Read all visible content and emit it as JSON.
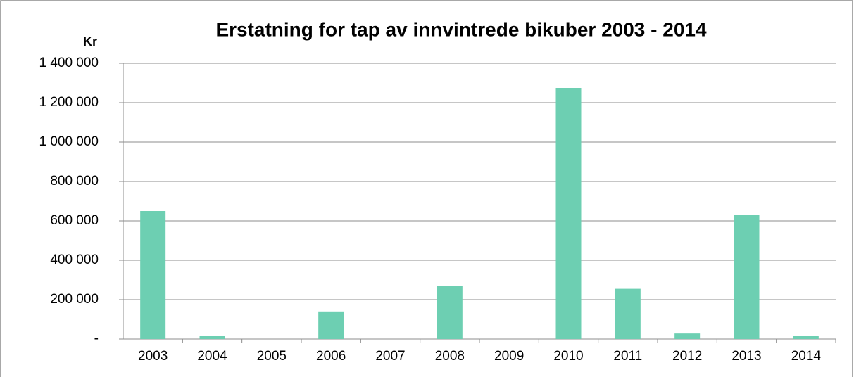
{
  "chart_data": {
    "type": "bar",
    "title": "Erstatning for tap av innvintrede bikuber 2003 - 2014",
    "y_label": "Kr",
    "categories": [
      "2003",
      "2004",
      "2005",
      "2006",
      "2007",
      "2008",
      "2009",
      "2010",
      "2011",
      "2012",
      "2013",
      "2014"
    ],
    "values": [
      650000,
      15000,
      0,
      140000,
      0,
      270000,
      0,
      1275000,
      255000,
      28000,
      630000,
      15000
    ],
    "color": "#6dcfb2",
    "ylim": [
      0,
      1400000
    ],
    "yticks": [
      {
        "value": 0,
        "label": "-"
      },
      {
        "value": 200000,
        "label": "200 000"
      },
      {
        "value": 400000,
        "label": "400 000"
      },
      {
        "value": 600000,
        "label": "600 000"
      },
      {
        "value": 800000,
        "label": "800 000"
      },
      {
        "value": 1000000,
        "label": "1 000 000"
      },
      {
        "value": 1200000,
        "label": "1 200 000"
      },
      {
        "value": 1400000,
        "label": "1 400 000"
      }
    ],
    "grid": true
  }
}
